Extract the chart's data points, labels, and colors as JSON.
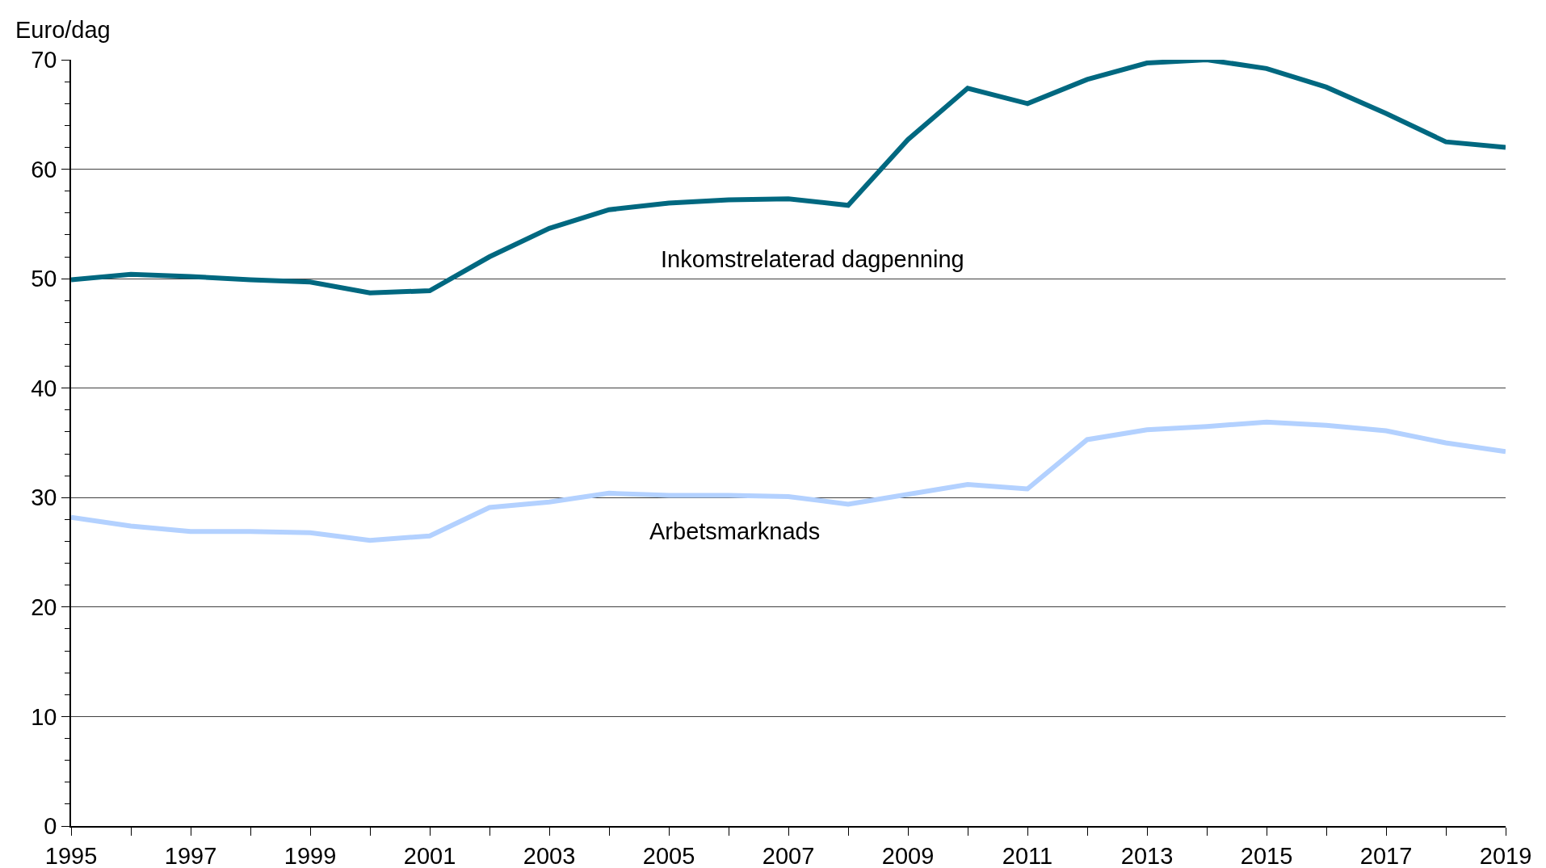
{
  "chart_data": {
    "type": "line",
    "ylabel": "Euro/dag",
    "x": [
      1995,
      1996,
      1997,
      1998,
      1999,
      2000,
      2001,
      2002,
      2003,
      2004,
      2005,
      2006,
      2007,
      2008,
      2009,
      2010,
      2011,
      2012,
      2013,
      2014,
      2015,
      2016,
      2017,
      2018,
      2019
    ],
    "series": [
      {
        "name": "Inkomstrelaterad dagpenning",
        "color": "#006880",
        "values": [
          49.9,
          50.4,
          50.2,
          49.9,
          49.7,
          48.7,
          48.9,
          52.0,
          54.6,
          56.3,
          56.9,
          57.2,
          57.3,
          56.7,
          62.7,
          67.4,
          66.0,
          68.2,
          69.7,
          70.0,
          69.2,
          67.5,
          65.1,
          62.5,
          62.0
        ]
      },
      {
        "name": "Arbetsmarknads",
        "color": "#b3d1ff",
        "values": [
          28.2,
          27.4,
          26.9,
          26.9,
          26.8,
          26.1,
          26.5,
          29.1,
          29.6,
          30.4,
          30.2,
          30.2,
          30.1,
          29.4,
          30.3,
          31.2,
          30.8,
          35.3,
          36.2,
          36.5,
          36.9,
          36.6,
          36.1,
          35.0,
          34.2
        ]
      }
    ],
    "xlim": [
      1995,
      2019
    ],
    "xticks": [
      1995,
      1997,
      1999,
      2001,
      2003,
      2005,
      2007,
      2009,
      2011,
      2013,
      2015,
      2017,
      2019
    ],
    "ylim": [
      0,
      70
    ],
    "yticks": [
      0,
      10,
      20,
      30,
      40,
      50,
      60,
      70
    ],
    "grid": "y",
    "legend": false
  }
}
